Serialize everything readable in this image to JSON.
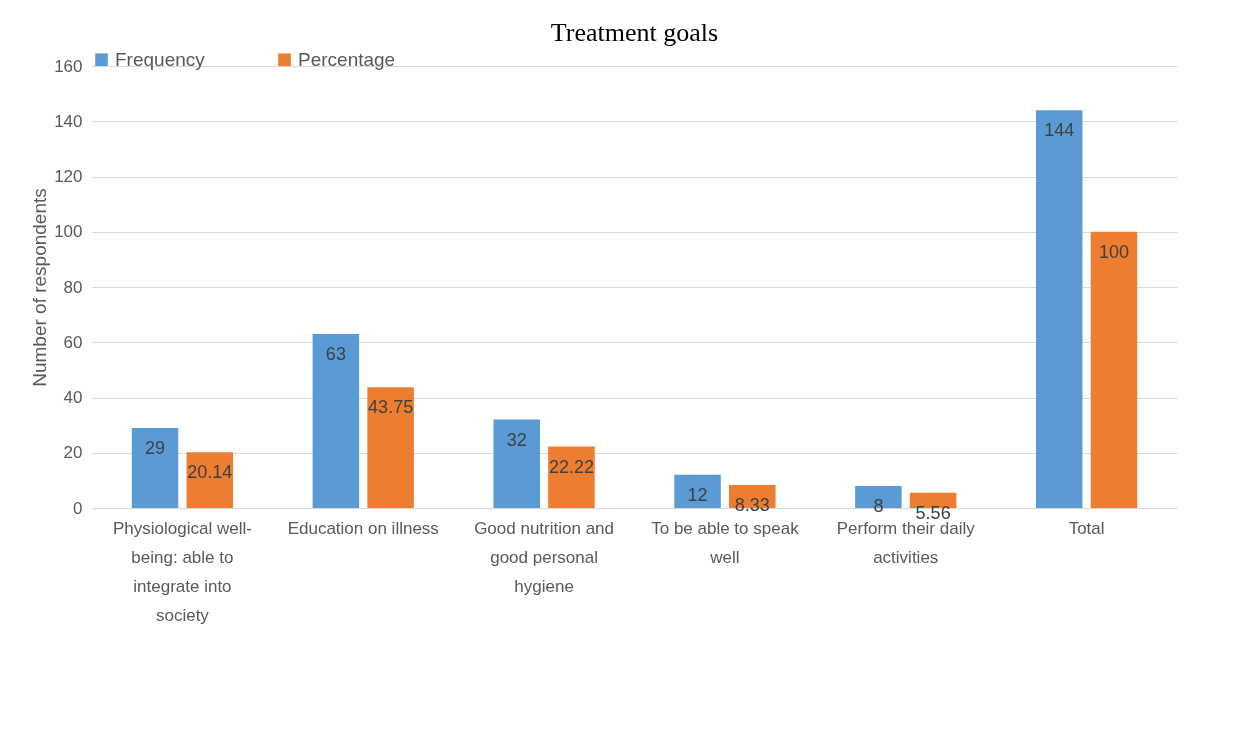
{
  "chart_data": {
    "type": "bar",
    "title": "Treatment goals",
    "ylabel": "Number of respondents",
    "categories": [
      "Physiological well-being: able to integrate into society",
      "Education on illness",
      "Good nutrition and good personal hygiene",
      "To be able to speak well",
      "Perform their daily activities",
      "Total"
    ],
    "series": [
      {
        "name": "Frequency",
        "color": "#5b9bd5",
        "values": [
          29,
          63,
          32,
          12,
          8,
          144
        ]
      },
      {
        "name": "Percentage",
        "color": "#ed7d31",
        "values": [
          20.14,
          43.75,
          22.22,
          8.33,
          5.56,
          100
        ]
      }
    ],
    "ylim": [
      0,
      160
    ],
    "yticks": [
      0,
      20,
      40,
      60,
      80,
      100,
      120,
      140,
      160
    ],
    "grid": "y",
    "legend": "top",
    "data_labels": true
  }
}
